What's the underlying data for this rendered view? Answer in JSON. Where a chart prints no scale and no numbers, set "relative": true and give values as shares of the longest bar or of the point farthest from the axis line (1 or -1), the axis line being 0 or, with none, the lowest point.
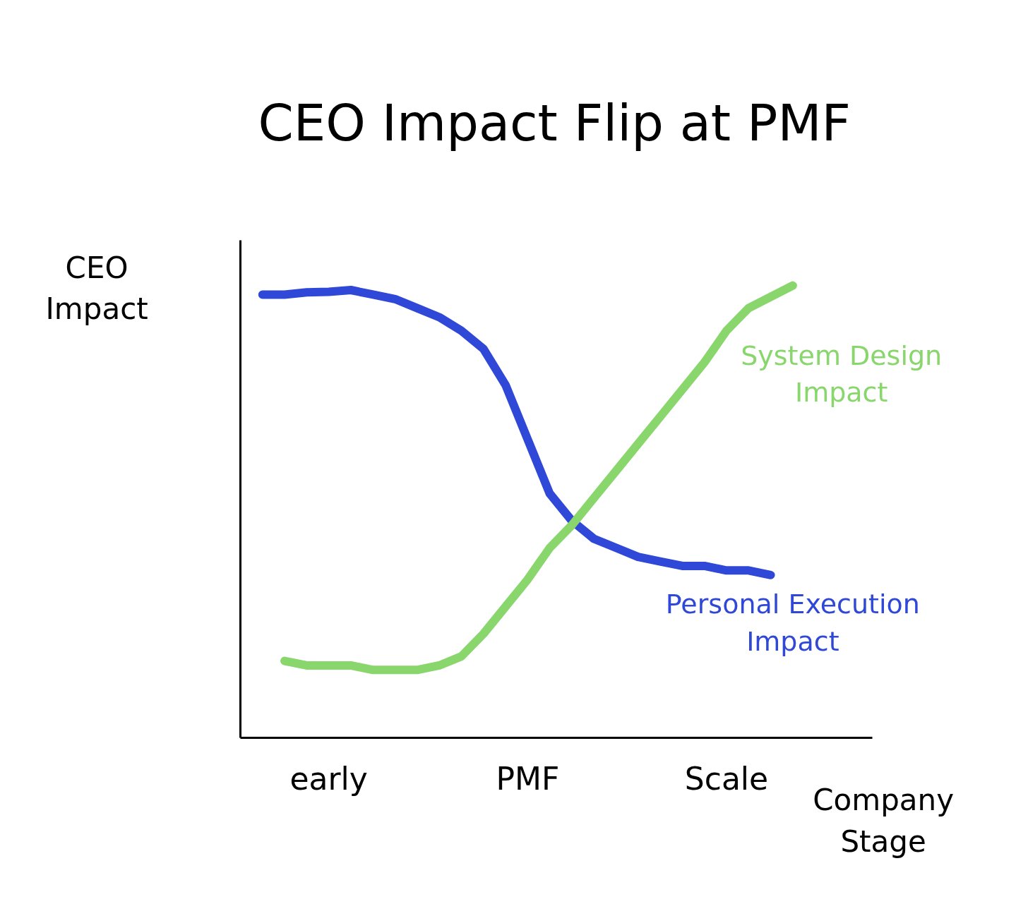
{
  "chart_data": {
    "type": "line",
    "title": "CEO Impact Flip at PMF",
    "xlabel": "Company Stage",
    "ylabel": "CEO Impact",
    "relative": true,
    "categories": [
      null,
      null,
      null,
      "early",
      null,
      null,
      null,
      null,
      null,
      null,
      null,
      null,
      "PMF",
      null,
      null,
      null,
      null,
      null,
      null,
      null,
      null,
      "Scale",
      null,
      null,
      null
    ],
    "series": [
      {
        "name": "Personal Execution Impact",
        "color": "#2f48d8",
        "values": [
          0.98,
          0.98,
          0.985,
          0.986,
          0.99,
          0.98,
          0.97,
          0.95,
          0.93,
          0.9,
          0.86,
          0.78,
          0.66,
          0.54,
          0.48,
          0.44,
          0.42,
          0.4,
          0.39,
          0.38,
          0.38,
          0.37,
          0.37,
          0.36,
          null
        ]
      },
      {
        "name": "System Design Impact",
        "color": "#88d66c",
        "values": [
          null,
          0.17,
          0.16,
          0.16,
          0.16,
          0.15,
          0.15,
          0.15,
          0.16,
          0.18,
          0.23,
          0.29,
          0.35,
          0.42,
          0.47,
          0.53,
          0.59,
          0.65,
          0.71,
          0.77,
          0.83,
          0.9,
          0.95,
          0.975,
          1.0
        ]
      }
    ],
    "line_style": "solid"
  }
}
